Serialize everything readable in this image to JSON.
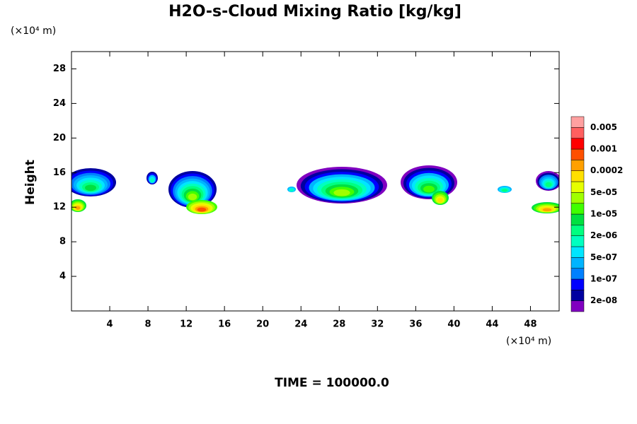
{
  "chart_data": {
    "type": "contour",
    "title": "H2O-s-Cloud Mixing Ratio [kg/kg]",
    "y_label": "Height",
    "y_unit": "(×10⁴ m)",
    "x_unit": "(×10⁴ m)",
    "footer": "TIME = 100000.0",
    "xlim": [
      0,
      51
    ],
    "xticks": [
      4,
      8,
      12,
      16,
      20,
      24,
      28,
      32,
      36,
      40,
      44,
      48
    ],
    "ylim": [
      0,
      30
    ],
    "yticks": [
      4,
      8,
      12,
      16,
      20,
      24,
      28
    ],
    "colorbar": {
      "colors": [
        "#8000c0",
        "#0000a0",
        "#0000ff",
        "#0080ff",
        "#00b4ff",
        "#00e6ff",
        "#00ffc0",
        "#00ff80",
        "#00e040",
        "#40ff00",
        "#a0ff00",
        "#e6ff00",
        "#ffe000",
        "#ffa000",
        "#ff5000",
        "#ff0000",
        "#ff6060",
        "#ffa0a0"
      ],
      "labels": [
        "2e-08",
        "1e-07",
        "5e-07",
        "2e-06",
        "1e-05",
        "5e-05",
        "0.0002",
        "0.001",
        "0.005"
      ]
    }
  }
}
